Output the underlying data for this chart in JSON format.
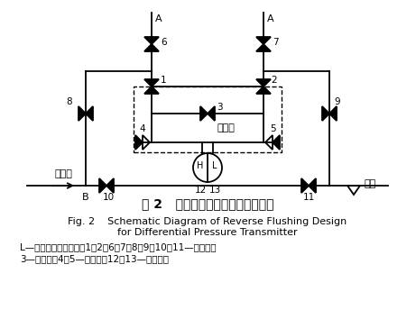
{
  "title_cn": "图 2   差压变送器反冲水设计示意图",
  "title_en_line1": "Fig. 2    Schematic Diagram of Reverse Flushing Design",
  "title_en_line2": "for Differential Pressure Transmitter",
  "caption_line1": "L—压力变送器低压侧；1、2、6、7、8、9、10、11—截止阀；",
  "caption_line2": "3—平衡阀；4、5—排污阀；12、13—排污丝堆",
  "bg_color": "#ffffff",
  "line_color": "#000000"
}
